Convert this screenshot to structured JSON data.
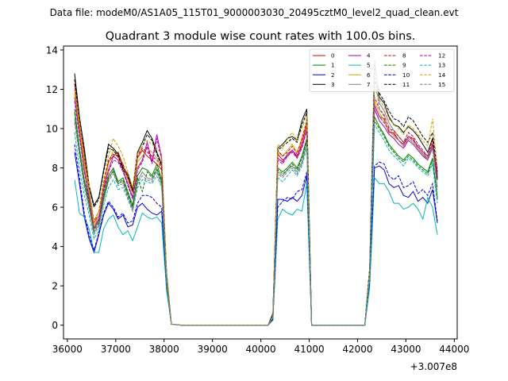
{
  "chart_data": {
    "type": "line",
    "suptitle": "Data file: modeM0/AS1A05_115T01_9000003030_20495cztM0_level2_quad_clean.evt",
    "title": "Quadrant 3 module wise count rates with 100.0s bins.",
    "xlabel": "",
    "ylabel": "",
    "x_offset_label": "+3.007e8",
    "xlim": [
      35920,
      44060
    ],
    "ylim": [
      -0.7,
      14.2
    ],
    "xticks": [
      36000,
      37000,
      38000,
      39000,
      40000,
      41000,
      42000,
      43000,
      44000
    ],
    "xtick_labels": [
      "36000",
      "37000",
      "38000",
      "39000",
      "40000",
      "41000",
      "42000",
      "43000",
      "44000"
    ],
    "yticks": [
      0,
      2,
      4,
      6,
      8,
      10,
      12,
      14
    ],
    "ytick_labels": [
      "0",
      "2",
      "4",
      "6",
      "8",
      "10",
      "12",
      "14"
    ],
    "segments": [
      {
        "start": 36150,
        "end": 38250
      },
      {
        "start": 38350,
        "end": 40150
      },
      {
        "start": 40250,
        "end": 40950
      },
      {
        "start": 41050,
        "end": 42150
      },
      {
        "start": 42250,
        "end": 43650
      }
    ],
    "series": [
      {
        "name": "0",
        "color": "#e00000",
        "dash": "solid",
        "seg1": [
          12.3,
          10.0,
          8.5,
          6.8,
          5.2,
          5.6,
          7.0,
          8.3,
          8.6,
          8.8,
          8.1,
          7.4,
          6.8,
          8.5,
          8.9,
          8.6,
          8.4,
          8.2,
          7.9,
          2.6,
          0.05
        ],
        "seg3": [
          0.5,
          8.7,
          8.4,
          8.6,
          8.9,
          8.5,
          9.3,
          10.2
        ],
        "seg5": [
          2.8,
          11.2,
          10.6,
          10.5,
          9.8,
          9.8,
          9.4,
          9.2,
          9.6,
          9.5,
          9.0,
          8.7,
          8.4,
          9.2,
          7.5
        ]
      },
      {
        "name": "1",
        "color": "#008000",
        "dash": "solid",
        "seg1": [
          11.0,
          9.0,
          7.4,
          6.3,
          4.9,
          5.3,
          6.6,
          7.6,
          8.0,
          7.3,
          7.5,
          6.8,
          6.1,
          7.6,
          8.0,
          7.9,
          7.6,
          8.2,
          7.4,
          2.4,
          0.05
        ],
        "seg3": [
          0.4,
          8.0,
          7.8,
          8.0,
          8.3,
          8.0,
          8.6,
          9.5
        ],
        "seg5": [
          2.6,
          10.6,
          10.1,
          9.7,
          9.2,
          8.9,
          8.6,
          8.4,
          8.7,
          8.5,
          8.2,
          8.0,
          7.8,
          8.5,
          6.5
        ]
      },
      {
        "name": "2",
        "color": "#0000dd",
        "dash": "solid",
        "seg1": [
          8.8,
          7.2,
          5.5,
          4.4,
          3.7,
          4.6,
          5.6,
          6.2,
          5.9,
          5.4,
          5.6,
          5.0,
          5.1,
          6.0,
          6.2,
          5.9,
          5.7,
          5.6,
          5.8,
          2.0,
          0.05
        ],
        "seg3": [
          0.3,
          6.4,
          6.4,
          6.3,
          6.5,
          6.3,
          6.6,
          7.6
        ],
        "seg5": [
          2.2,
          8.0,
          8.1,
          7.9,
          7.2,
          7.0,
          7.1,
          6.6,
          6.5,
          6.8,
          6.3,
          6.5,
          6.2,
          6.9,
          5.2
        ]
      },
      {
        "name": "3",
        "color": "#000000",
        "dash": "solid",
        "seg1": [
          12.8,
          10.6,
          9.0,
          7.1,
          6.1,
          6.5,
          7.9,
          9.2,
          9.0,
          8.7,
          8.0,
          7.7,
          6.9,
          8.8,
          9.3,
          9.9,
          9.5,
          8.8,
          8.2,
          2.7,
          0.05
        ],
        "seg3": [
          0.6,
          9.0,
          9.2,
          9.5,
          9.6,
          9.4,
          10.4,
          11.0
        ],
        "seg5": [
          2.9,
          13.3,
          11.6,
          11.3,
          10.6,
          10.2,
          10.1,
          9.8,
          10.1,
          9.9,
          9.6,
          9.2,
          8.8,
          9.5,
          7.4
        ]
      },
      {
        "name": "4",
        "color": "#b000b0",
        "dash": "solid",
        "seg1": [
          11.6,
          9.8,
          7.9,
          6.5,
          5.0,
          5.4,
          6.9,
          7.9,
          8.6,
          8.4,
          7.9,
          7.2,
          6.5,
          8.0,
          8.4,
          9.3,
          8.3,
          9.7,
          8.5,
          2.5,
          0.05
        ],
        "seg3": [
          0.5,
          8.5,
          8.3,
          8.7,
          8.9,
          8.6,
          9.1,
          10.0
        ],
        "seg5": [
          2.7,
          11.0,
          10.4,
          10.1,
          9.7,
          9.5,
          9.2,
          9.0,
          9.4,
          9.2,
          8.9,
          8.6,
          8.4,
          9.0,
          7.6
        ]
      },
      {
        "name": "5",
        "color": "#00b8b8",
        "dash": "solid",
        "seg1": [
          7.4,
          5.7,
          5.5,
          4.9,
          3.7,
          3.7,
          4.9,
          5.4,
          5.6,
          5.0,
          4.6,
          4.8,
          4.3,
          5.0,
          5.7,
          5.5,
          5.4,
          5.5,
          5.2,
          1.8,
          0.05
        ],
        "seg3": [
          0.25,
          5.4,
          5.9,
          5.7,
          5.6,
          5.9,
          5.8,
          7.2
        ],
        "seg5": [
          1.9,
          7.5,
          7.2,
          7.2,
          6.8,
          6.2,
          6.2,
          5.9,
          6.0,
          6.2,
          5.9,
          5.4,
          6.5,
          6.0,
          4.6
        ]
      },
      {
        "name": "6",
        "color": "#c8a800",
        "dash": "solid",
        "seg1": [
          11.8,
          10.1,
          8.2,
          6.8,
          5.0,
          5.6,
          7.1,
          8.2,
          8.9,
          8.5,
          8.2,
          7.4,
          6.7,
          8.3,
          8.6,
          9.0,
          8.8,
          8.5,
          8.1,
          2.6,
          0.05
        ],
        "seg3": [
          0.5,
          8.8,
          8.6,
          8.9,
          9.2,
          8.8,
          9.5,
          10.3
        ],
        "seg5": [
          2.8,
          11.4,
          10.8,
          10.4,
          9.9,
          9.6,
          9.4,
          9.1,
          9.5,
          9.3,
          9.0,
          8.7,
          8.5,
          9.1,
          7.8
        ]
      },
      {
        "name": "7",
        "color": "#808080",
        "dash": "solid",
        "seg1": [
          10.5,
          8.8,
          7.2,
          6.0,
          4.7,
          5.1,
          6.4,
          7.4,
          7.9,
          7.2,
          7.3,
          6.6,
          5.9,
          7.3,
          7.8,
          7.5,
          7.4,
          7.9,
          7.2,
          2.3,
          0.05
        ],
        "seg3": [
          0.4,
          7.8,
          7.6,
          7.9,
          8.1,
          7.8,
          8.3,
          9.3
        ],
        "seg5": [
          2.5,
          13.5,
          11.3,
          10.9,
          10.3,
          9.9,
          9.6,
          9.3,
          9.6,
          9.4,
          9.1,
          8.8,
          8.5,
          9.1,
          7.0
        ]
      },
      {
        "name": "8",
        "color": "#e00000",
        "dash": "dashed",
        "seg1": [
          12.0,
          10.3,
          8.7,
          7.0,
          5.3,
          5.8,
          7.2,
          8.4,
          8.7,
          8.6,
          8.2,
          7.5,
          6.9,
          8.6,
          9.0,
          8.8,
          8.6,
          8.4,
          8.0,
          2.6,
          0.05
        ],
        "seg3": [
          0.5,
          8.9,
          8.6,
          8.8,
          9.1,
          8.7,
          9.5,
          10.4
        ],
        "seg5": [
          2.8,
          11.6,
          11.0,
          10.7,
          10.0,
          9.9,
          9.6,
          9.3,
          9.8,
          9.6,
          9.2,
          8.9,
          8.6,
          9.4,
          7.6
        ]
      },
      {
        "name": "9",
        "color": "#008000",
        "dash": "dashed",
        "seg1": [
          10.8,
          8.9,
          7.3,
          6.2,
          4.8,
          5.2,
          6.5,
          7.5,
          7.8,
          7.2,
          7.4,
          6.7,
          6.0,
          7.5,
          6.8,
          7.8,
          7.5,
          8.0,
          7.3,
          2.4,
          0.05
        ],
        "seg3": [
          0.4,
          7.9,
          7.7,
          7.9,
          8.2,
          7.9,
          8.5,
          9.4
        ],
        "seg5": [
          2.6,
          10.4,
          10.0,
          9.6,
          9.1,
          8.8,
          8.5,
          8.3,
          8.6,
          8.4,
          8.1,
          7.9,
          7.7,
          8.4,
          6.4
        ]
      },
      {
        "name": "10",
        "color": "#0000dd",
        "dash": "dashed",
        "seg1": [
          9.2,
          7.5,
          5.7,
          4.6,
          3.8,
          4.7,
          5.7,
          6.3,
          6.0,
          5.5,
          5.7,
          5.2,
          5.3,
          6.2,
          6.6,
          6.6,
          6.5,
          6.2,
          6.0,
          2.0,
          0.05
        ],
        "seg3": [
          0.3,
          6.0,
          6.3,
          6.5,
          6.4,
          6.8,
          6.9,
          7.8
        ],
        "seg5": [
          2.2,
          8.1,
          8.3,
          8.2,
          7.6,
          7.4,
          7.6,
          7.0,
          7.1,
          7.3,
          6.7,
          6.9,
          6.6,
          7.2,
          5.3
        ]
      },
      {
        "name": "11",
        "color": "#000000",
        "dash": "dashed",
        "seg1": [
          12.5,
          10.4,
          8.8,
          7.0,
          6.0,
          6.4,
          7.8,
          9.0,
          8.9,
          8.6,
          7.9,
          7.6,
          6.8,
          8.7,
          9.1,
          9.7,
          9.4,
          8.7,
          8.1,
          2.7,
          0.05
        ],
        "seg3": [
          0.6,
          8.9,
          9.1,
          9.3,
          9.5,
          9.3,
          10.2,
          10.8
        ],
        "seg5": [
          2.9,
          12.4,
          11.8,
          11.4,
          10.9,
          10.5,
          10.4,
          10.1,
          10.6,
          10.4,
          10.0,
          9.6,
          9.3,
          9.8,
          7.8
        ]
      },
      {
        "name": "12",
        "color": "#b000b0",
        "dash": "dashed",
        "seg1": [
          11.4,
          9.6,
          7.8,
          6.4,
          4.9,
          5.3,
          6.8,
          7.8,
          8.4,
          8.3,
          7.8,
          7.1,
          6.4,
          7.9,
          8.3,
          9.1,
          8.2,
          9.5,
          8.4,
          2.5,
          0.05
        ],
        "seg3": [
          0.5,
          8.4,
          8.2,
          8.6,
          8.8,
          8.5,
          9.0,
          9.9
        ],
        "seg5": [
          2.7,
          11.2,
          10.6,
          10.3,
          9.9,
          9.7,
          9.4,
          9.2,
          9.6,
          9.4,
          9.1,
          8.8,
          8.6,
          9.2,
          7.7
        ]
      },
      {
        "name": "13",
        "color": "#00b8b8",
        "dash": "dashed",
        "seg1": [
          9.8,
          8.0,
          6.6,
          5.6,
          4.4,
          4.8,
          6.1,
          7.0,
          7.4,
          6.9,
          7.0,
          6.4,
          5.8,
          7.0,
          7.4,
          7.3,
          7.2,
          7.6,
          7.0,
          2.2,
          0.05
        ],
        "seg3": [
          0.4,
          7.5,
          7.3,
          7.6,
          7.9,
          7.6,
          8.1,
          9.0
        ],
        "seg5": [
          2.4,
          10.2,
          9.8,
          9.4,
          8.9,
          8.6,
          8.4,
          8.1,
          8.5,
          8.3,
          8.0,
          7.8,
          7.6,
          8.2,
          6.2
        ]
      },
      {
        "name": "14",
        "color": "#c8a800",
        "dash": "dashed",
        "seg1": [
          12.0,
          10.4,
          8.6,
          7.1,
          5.2,
          5.8,
          7.4,
          8.6,
          9.5,
          9.1,
          8.6,
          7.8,
          7.0,
          8.7,
          9.1,
          9.4,
          9.2,
          9.0,
          8.7,
          2.7,
          0.05
        ],
        "seg3": [
          0.5,
          9.2,
          9.0,
          9.5,
          9.8,
          9.4,
          10.0,
          10.7
        ],
        "seg5": [
          2.9,
          12.1,
          11.5,
          11.1,
          10.5,
          10.2,
          10.0,
          9.7,
          10.2,
          10.0,
          9.7,
          9.4,
          9.1,
          10.5,
          8.0
        ]
      },
      {
        "name": "15",
        "color": "#808080",
        "dash": "dashed",
        "seg1": [
          10.3,
          8.6,
          7.0,
          5.9,
          4.6,
          5.0,
          6.3,
          7.3,
          7.7,
          7.1,
          7.2,
          6.5,
          5.8,
          7.2,
          7.6,
          7.4,
          7.3,
          7.8,
          7.1,
          2.3,
          0.05
        ],
        "seg3": [
          0.4,
          7.7,
          7.5,
          7.8,
          8.0,
          7.7,
          8.2,
          9.2
        ],
        "seg5": [
          2.5,
          12.8,
          11.0,
          10.6,
          10.1,
          9.7,
          9.4,
          9.1,
          9.5,
          9.3,
          9.0,
          8.7,
          8.4,
          9.0,
          6.9
        ]
      }
    ],
    "legend": {
      "location": "upper right",
      "ncol": 4
    }
  }
}
